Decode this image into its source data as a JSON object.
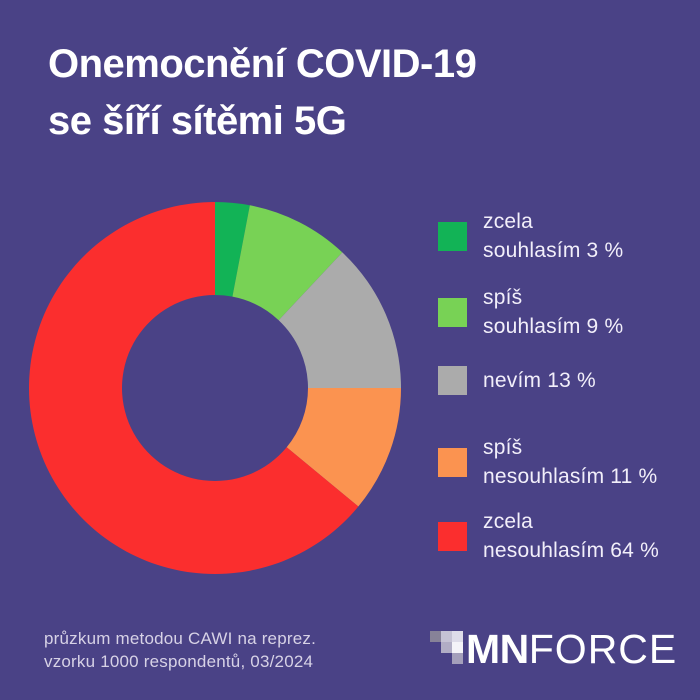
{
  "title": {
    "line1": "Onemocnění COVID-19",
    "line2": "se šíří sítěmi 5G"
  },
  "chart_data": {
    "type": "pie",
    "subtype": "donut",
    "title": "Onemocnění COVID-19 se šíří sítěmi 5G",
    "unit": "%",
    "start_angle_deg": 0,
    "direction": "clockwise",
    "inner_radius_ratio": 0.5,
    "legend_position": "right",
    "segments": [
      {
        "label": "zcela souhlasím",
        "value_pct": 3,
        "color": "#12b356",
        "legend_lines": [
          "zcela",
          "souhlasím 3 %"
        ]
      },
      {
        "label": "spíš souhlasím",
        "value_pct": 9,
        "color": "#78d255",
        "legend_lines": [
          "spíš",
          "souhlasím 9 %"
        ]
      },
      {
        "label": "nevím",
        "value_pct": 13,
        "color": "#ababab",
        "legend_lines": [
          "nevím 13 %"
        ]
      },
      {
        "label": "spíš nesouhlasím",
        "value_pct": 11,
        "color": "#fb9350",
        "legend_lines": [
          "spíš",
          "nesouhlasím 11 %"
        ]
      },
      {
        "label": "zcela nesouhlasím",
        "value_pct": 64,
        "color": "#fb2e2e",
        "legend_lines": [
          "zcela",
          "nesouhlasím 64 %"
        ]
      }
    ]
  },
  "footer": {
    "line1": "průzkum metodou CAWI na reprez.",
    "line2": "vzorku 1000 respondentů, 03/2024"
  },
  "logo": {
    "bold": "MN",
    "light": "FORCE",
    "mosaic": [
      {
        "row": 0,
        "col": 0,
        "color": "#878298"
      },
      {
        "row": 0,
        "col": 1,
        "color": "#c5c2d4"
      },
      {
        "row": 0,
        "col": 2,
        "color": "#dedce9"
      },
      {
        "row": 1,
        "col": 1,
        "color": "#b1adc5"
      },
      {
        "row": 1,
        "col": 2,
        "color": "#f4f3f8"
      },
      {
        "row": 2,
        "col": 2,
        "color": "#a49fbb"
      }
    ]
  },
  "colors": {
    "background": "#4a4286",
    "title_text": "#ffffff",
    "legend_text": "#f2effa",
    "footer_text": "#d7d2e6",
    "logo_text": "#ffffff"
  }
}
